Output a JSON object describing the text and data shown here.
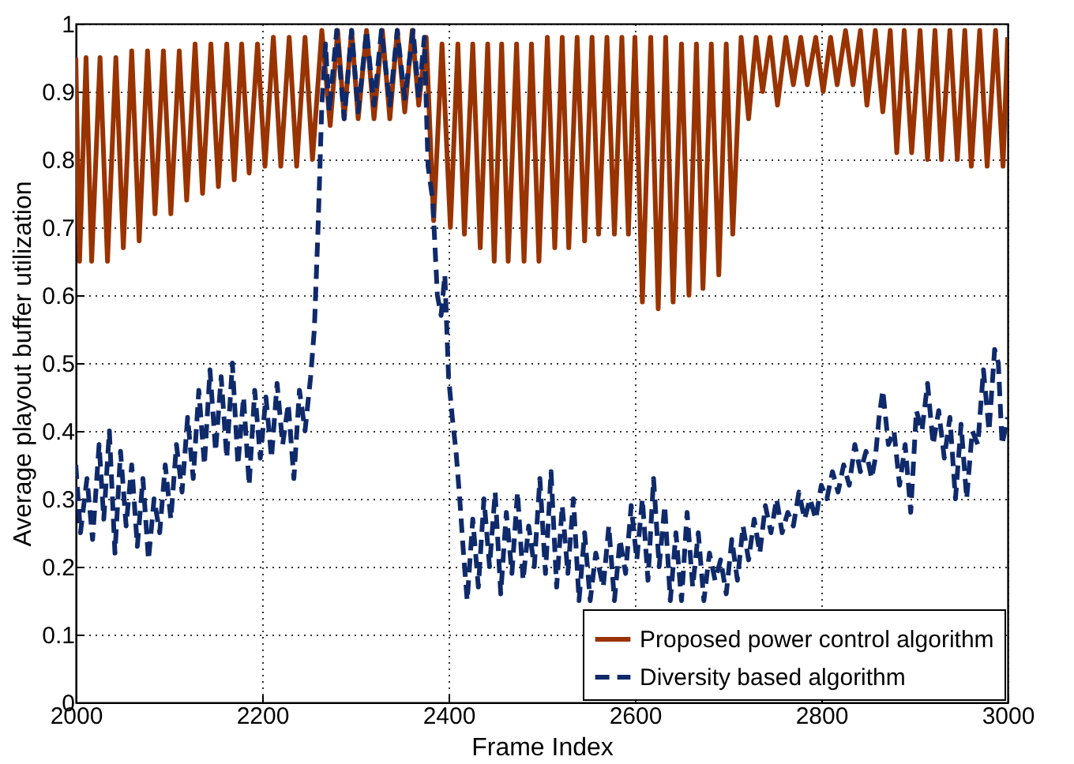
{
  "chart_data": {
    "type": "line",
    "xlabel": "Frame Index",
    "ylabel": "Average playout buffer utilization",
    "xlim": [
      2000,
      3000
    ],
    "xticks": [
      2000,
      2200,
      2400,
      2600,
      2800,
      3000
    ],
    "ylim": [
      0,
      1
    ],
    "yticks": [
      0,
      0.1,
      0.2,
      0.3,
      0.4,
      0.5,
      0.6,
      0.7,
      0.8,
      0.9,
      1
    ],
    "grid": true,
    "legend": "bottom right",
    "series": [
      {
        "name": "Proposed power control algorithm",
        "color": "#993300",
        "line_style": "solid",
        "x": [
          2000,
          2004,
          2011,
          2017,
          2026,
          2034,
          2043,
          2051,
          2060,
          2068,
          2077,
          2085,
          2094,
          2102,
          2111,
          2119,
          2128,
          2136,
          2145,
          2153,
          2162,
          2170,
          2178,
          2186,
          2195,
          2203,
          2212,
          2220,
          2229,
          2237,
          2246,
          2254,
          2264,
          2273,
          2281,
          2288,
          2296,
          2303,
          2312,
          2320,
          2329,
          2337,
          2345,
          2353,
          2361,
          2368,
          2376,
          2384,
          2393,
          2402,
          2410,
          2417,
          2426,
          2434,
          2442,
          2449,
          2457,
          2464,
          2473,
          2481,
          2489,
          2497,
          2506,
          2514,
          2522,
          2529,
          2538,
          2546,
          2554,
          2561,
          2570,
          2578,
          2586,
          2593,
          2600,
          2608,
          2617,
          2625,
          2633,
          2641,
          2650,
          2658,
          2666,
          2673,
          2682,
          2690,
          2698,
          2705,
          2714,
          2722,
          2730,
          2737,
          2745,
          2753,
          2762,
          2770,
          2778,
          2785,
          2794,
          2802,
          2810,
          2817,
          2826,
          2834,
          2842,
          2849,
          2858,
          2866,
          2874,
          2881,
          2889,
          2897,
          2906,
          2914,
          2922,
          2929,
          2938,
          2946,
          2954,
          2961,
          2970,
          2978,
          2987,
          2995,
          3000
        ],
        "values": [
          0.95,
          0.65,
          0.95,
          0.65,
          0.95,
          0.65,
          0.95,
          0.67,
          0.96,
          0.68,
          0.96,
          0.72,
          0.96,
          0.72,
          0.96,
          0.74,
          0.97,
          0.75,
          0.97,
          0.76,
          0.97,
          0.77,
          0.97,
          0.78,
          0.97,
          0.79,
          0.98,
          0.79,
          0.98,
          0.79,
          0.98,
          0.8,
          0.99,
          0.85,
          0.99,
          0.86,
          0.99,
          0.86,
          0.99,
          0.86,
          0.99,
          0.86,
          0.99,
          0.87,
          0.99,
          0.88,
          0.98,
          0.71,
          0.97,
          0.7,
          0.97,
          0.69,
          0.97,
          0.67,
          0.97,
          0.65,
          0.97,
          0.65,
          0.97,
          0.65,
          0.97,
          0.65,
          0.98,
          0.67,
          0.98,
          0.67,
          0.98,
          0.68,
          0.98,
          0.69,
          0.98,
          0.69,
          0.98,
          0.69,
          0.98,
          0.59,
          0.98,
          0.58,
          0.98,
          0.59,
          0.97,
          0.6,
          0.97,
          0.61,
          0.97,
          0.63,
          0.97,
          0.69,
          0.98,
          0.86,
          0.98,
          0.9,
          0.98,
          0.88,
          0.98,
          0.91,
          0.98,
          0.91,
          0.98,
          0.9,
          0.98,
          0.91,
          0.99,
          0.91,
          0.99,
          0.88,
          0.99,
          0.87,
          0.99,
          0.81,
          0.99,
          0.81,
          0.99,
          0.8,
          0.99,
          0.8,
          0.99,
          0.8,
          0.99,
          0.79,
          0.99,
          0.79,
          0.99,
          0.79,
          0.98
        ]
      },
      {
        "name": "Diversity based algorithm",
        "color": "#0f2a6b",
        "line_style": "dashed",
        "x": [
          2000,
          2005,
          2012,
          2018,
          2025,
          2030,
          2036,
          2042,
          2048,
          2054,
          2060,
          2066,
          2072,
          2078,
          2084,
          2090,
          2096,
          2102,
          2108,
          2114,
          2120,
          2126,
          2132,
          2138,
          2144,
          2150,
          2156,
          2162,
          2168,
          2174,
          2180,
          2186,
          2192,
          2198,
          2204,
          2210,
          2216,
          2222,
          2228,
          2234,
          2240,
          2246,
          2252,
          2256,
          2260,
          2264,
          2268,
          2272,
          2280,
          2288,
          2296,
          2303,
          2312,
          2320,
          2328,
          2337,
          2345,
          2353,
          2362,
          2368,
          2374,
          2378,
          2383,
          2388,
          2392,
          2396,
          2400,
          2404,
          2408,
          2412,
          2416,
          2420,
          2426,
          2432,
          2438,
          2444,
          2450,
          2456,
          2462,
          2468,
          2474,
          2480,
          2486,
          2492,
          2498,
          2504,
          2510,
          2516,
          2522,
          2528,
          2534,
          2540,
          2546,
          2552,
          2558,
          2566,
          2572,
          2578,
          2584,
          2590,
          2596,
          2602,
          2608,
          2614,
          2620,
          2626,
          2632,
          2638,
          2644,
          2650,
          2656,
          2662,
          2668,
          2674,
          2680,
          2686,
          2692,
          2698,
          2704,
          2710,
          2716,
          2722,
          2728,
          2734,
          2740,
          2746,
          2752,
          2758,
          2764,
          2770,
          2776,
          2782,
          2788,
          2794,
          2800,
          2806,
          2812,
          2818,
          2824,
          2830,
          2836,
          2842,
          2848,
          2854,
          2858,
          2862,
          2866,
          2872,
          2878,
          2884,
          2890,
          2896,
          2902,
          2908,
          2914,
          2920,
          2926,
          2932,
          2938,
          2944,
          2950,
          2956,
          2962,
          2968,
          2974,
          2980,
          2986,
          2990,
          2994,
          3000
        ],
        "values": [
          0.35,
          0.25,
          0.33,
          0.24,
          0.38,
          0.27,
          0.4,
          0.22,
          0.37,
          0.26,
          0.35,
          0.23,
          0.33,
          0.21,
          0.3,
          0.25,
          0.35,
          0.27,
          0.38,
          0.31,
          0.42,
          0.33,
          0.46,
          0.35,
          0.49,
          0.37,
          0.48,
          0.36,
          0.5,
          0.35,
          0.45,
          0.32,
          0.46,
          0.36,
          0.45,
          0.36,
          0.47,
          0.38,
          0.44,
          0.33,
          0.46,
          0.4,
          0.48,
          0.55,
          0.7,
          0.88,
          0.97,
          0.87,
          0.99,
          0.86,
          0.99,
          0.87,
          0.99,
          0.88,
          0.99,
          0.88,
          0.99,
          0.89,
          0.99,
          0.89,
          0.98,
          0.79,
          0.74,
          0.6,
          0.57,
          0.63,
          0.48,
          0.42,
          0.37,
          0.3,
          0.22,
          0.15,
          0.27,
          0.17,
          0.3,
          0.2,
          0.31,
          0.16,
          0.28,
          0.19,
          0.31,
          0.18,
          0.26,
          0.2,
          0.33,
          0.19,
          0.34,
          0.17,
          0.29,
          0.19,
          0.3,
          0.15,
          0.25,
          0.15,
          0.22,
          0.17,
          0.26,
          0.15,
          0.24,
          0.19,
          0.29,
          0.21,
          0.3,
          0.18,
          0.33,
          0.2,
          0.29,
          0.15,
          0.25,
          0.15,
          0.28,
          0.17,
          0.25,
          0.15,
          0.22,
          0.18,
          0.21,
          0.16,
          0.24,
          0.18,
          0.26,
          0.21,
          0.27,
          0.22,
          0.29,
          0.25,
          0.3,
          0.25,
          0.28,
          0.26,
          0.31,
          0.27,
          0.3,
          0.27,
          0.32,
          0.3,
          0.34,
          0.31,
          0.35,
          0.32,
          0.38,
          0.34,
          0.37,
          0.33,
          0.36,
          0.42,
          0.46,
          0.38,
          0.4,
          0.32,
          0.38,
          0.28,
          0.43,
          0.4,
          0.47,
          0.38,
          0.43,
          0.36,
          0.42,
          0.3,
          0.41,
          0.3,
          0.4,
          0.38,
          0.49,
          0.4,
          0.52,
          0.5,
          0.38,
          0.42
        ]
      }
    ]
  }
}
